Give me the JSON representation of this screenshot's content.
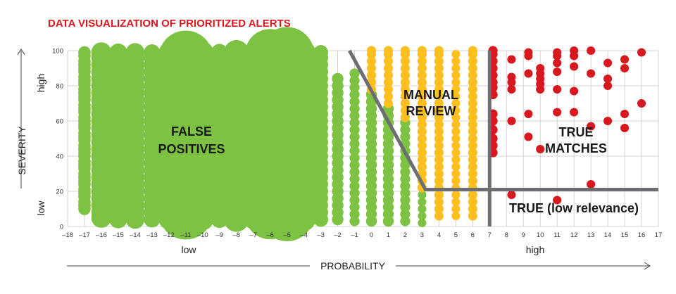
{
  "chart_data": {
    "type": "scatter",
    "title": "DATA VISUALIZATION OF PRIORITIZED ALERTS",
    "xlabel": "PROBABILITY",
    "ylabel": "SEVERITY",
    "x_low_label": "low",
    "x_high_label": "high",
    "y_low_label": "low",
    "y_high_label": "high",
    "xlim": [
      -18,
      17
    ],
    "ylim": [
      0,
      100
    ],
    "x_ticks": [
      -18,
      -17,
      -16,
      -15,
      -14,
      -13,
      -12,
      -11,
      -10,
      -9,
      -8,
      -7,
      -6,
      -5,
      -4,
      -3,
      -2,
      -1,
      0,
      1,
      2,
      3,
      4,
      5,
      6,
      7,
      8,
      9,
      10,
      11,
      12,
      13,
      14,
      15,
      16,
      17
    ],
    "y_ticks": [
      0,
      20,
      40,
      60,
      80,
      100
    ],
    "grid": true,
    "colors": {
      "false_positive": "#7dc242",
      "manual_review": "#ffbf1f",
      "true_match": "#d7191f",
      "boundary": "#6d6e71",
      "title": "#d7191f"
    },
    "regions": {
      "false_positives": "FALSE POSITIVES",
      "manual_review": "MANUAL REVIEW",
      "true_matches": "TRUE MATCHES",
      "true_low_relevance": "TRUE (low relevance)"
    },
    "boundary": [
      {
        "points": [
          [
            -1.3,
            100
          ],
          [
            3.2,
            21
          ],
          [
            17,
            21
          ]
        ]
      },
      {
        "points": [
          [
            7,
            0
          ],
          [
            7,
            100
          ]
        ]
      }
    ],
    "series": [
      {
        "name": "FALSE POSITIVES",
        "color": "#7dc242",
        "columns": [
          {
            "x": -17,
            "size": 1.6,
            "values": [
              10,
              12,
              14,
              17,
              19,
              21,
              24,
              26,
              28,
              30,
              33,
              35,
              37,
              40,
              42,
              44,
              46,
              49,
              51,
              53,
              56,
              58,
              60,
              62,
              65,
              67,
              69,
              72,
              74,
              76,
              78,
              81,
              83,
              85,
              88,
              90,
              92,
              94,
              97,
              99
            ]
          },
          {
            "x": -16,
            "size": 2.6,
            "values": [
              5,
              8,
              12,
              16,
              20,
              24,
              28,
              32,
              36,
              40,
              44,
              48,
              52,
              56,
              60,
              64,
              68,
              72,
              76,
              80,
              84,
              88,
              92,
              96,
              99
            ]
          },
          {
            "x": -15,
            "size": 2.3,
            "values": [
              4,
              8,
              12,
              16,
              20,
              24,
              28,
              32,
              36,
              40,
              44,
              48,
              52,
              56,
              60,
              64,
              68,
              72,
              76,
              80,
              84,
              88,
              92,
              96,
              99
            ]
          },
          {
            "x": -14,
            "size": 2.4,
            "values": [
              4,
              8,
              12,
              16,
              20,
              24,
              28,
              32,
              36,
              40,
              44,
              48,
              52,
              56,
              60,
              64,
              68,
              72,
              76,
              80,
              84,
              88,
              92,
              96,
              99
            ]
          },
          {
            "x": -13,
            "size": 2.1,
            "values": [
              4,
              8,
              12,
              16,
              20,
              24,
              28,
              32,
              36,
              40,
              44,
              48,
              52,
              56,
              60,
              64,
              68,
              72,
              76,
              80,
              84,
              88,
              92,
              96,
              99
            ]
          },
          {
            "x": -12,
            "size": 2.6,
            "values": [
              4,
              8,
              12,
              16,
              20,
              24,
              28,
              32,
              36,
              40,
              44,
              48,
              52,
              56,
              60,
              64,
              68,
              72,
              76,
              80,
              84,
              88,
              92,
              96,
              99
            ]
          },
          {
            "x": -11,
            "size": 7.0,
            "values": [
              8,
              16,
              24,
              32,
              40,
              48,
              56,
              64,
              72,
              80,
              88,
              96
            ]
          },
          {
            "x": -10,
            "size": 2.8,
            "values": [
              4,
              8,
              12,
              16,
              20,
              24,
              28,
              32,
              36,
              40,
              44,
              48,
              52,
              56,
              60,
              64,
              68,
              72,
              76,
              80,
              84,
              88,
              92,
              96,
              99
            ]
          },
          {
            "x": -9,
            "size": 2.2,
            "values": [
              4,
              8,
              12,
              16,
              20,
              24,
              28,
              32,
              36,
              40,
              44,
              48,
              52,
              56,
              60,
              64,
              68,
              72,
              76,
              80,
              84,
              88,
              92,
              96,
              99
            ]
          },
          {
            "x": -8,
            "size": 3.2,
            "values": [
              4,
              8,
              12,
              16,
              20,
              24,
              28,
              32,
              36,
              40,
              44,
              48,
              52,
              56,
              60,
              64,
              68,
              72,
              76,
              80,
              84,
              88,
              92,
              96,
              99
            ]
          },
          {
            "x": -7,
            "size": 2.5,
            "values": [
              4,
              8,
              12,
              16,
              20,
              24,
              28,
              32,
              36,
              40,
              44,
              48,
              52,
              56,
              60,
              64,
              68,
              72,
              76,
              80,
              84,
              88,
              92,
              96,
              99
            ]
          },
          {
            "x": -6,
            "size": 6.5,
            "values": [
              7,
              14,
              21,
              28,
              35,
              42,
              49,
              56,
              63,
              70,
              77,
              84,
              91,
              98
            ]
          },
          {
            "x": -5,
            "size": 7.0,
            "values": [
              7,
              14,
              21,
              28,
              35,
              42,
              49,
              56,
              63,
              70,
              77,
              84,
              91,
              98
            ]
          },
          {
            "x": -4,
            "size": 3.0,
            "values": [
              4,
              8,
              12,
              16,
              20,
              24,
              28,
              32,
              36,
              40,
              44,
              48,
              52,
              56,
              60,
              64,
              68,
              72,
              76,
              80,
              84,
              88,
              92,
              96,
              99
            ]
          },
          {
            "x": -3,
            "size": 1.9,
            "values": [
              4,
              8,
              12,
              16,
              20,
              24,
              28,
              32,
              36,
              40,
              44,
              48,
              52,
              56,
              60,
              64,
              68,
              72,
              76,
              80,
              84,
              88,
              92,
              96,
              99
            ]
          },
          {
            "x": -2,
            "size": 1.5,
            "values": [
              4,
              8,
              12,
              16,
              20,
              24,
              28,
              32,
              36,
              40,
              44,
              48,
              52,
              56,
              60,
              64,
              68,
              72,
              76,
              80,
              84
            ]
          },
          {
            "x": -1,
            "size": 1.3,
            "values": [
              3,
              7,
              11,
              15,
              19,
              23,
              27,
              31,
              35,
              39,
              43,
              47,
              51,
              55,
              59,
              63,
              67,
              71,
              75,
              79,
              83,
              87
            ]
          },
          {
            "x": 0,
            "size": 1.4,
            "values": [
              3,
              7,
              11,
              15,
              19,
              23,
              27,
              31,
              35,
              39,
              43,
              47,
              51,
              55,
              59,
              63,
              67,
              71,
              75
            ]
          },
          {
            "x": 1,
            "size": 1.4,
            "values": [
              3,
              7,
              11,
              15,
              19,
              23,
              27,
              31,
              35,
              39,
              43,
              47,
              51,
              55,
              59,
              63,
              67
            ]
          },
          {
            "x": 2,
            "size": 1.3,
            "values": [
              3,
              7,
              11,
              15,
              19,
              23,
              27,
              31,
              35,
              39,
              43,
              47,
              51,
              55,
              59
            ]
          },
          {
            "x": 3,
            "size": 1.1,
            "values": [
              2,
              6,
              10,
              14,
              18
            ]
          }
        ]
      },
      {
        "name": "MANUAL REVIEW",
        "color": "#ffbf1f",
        "columns": [
          {
            "x": 0,
            "size": 1.2,
            "values": [
              78,
              82,
              86,
              90,
              94,
              98,
              100
            ]
          },
          {
            "x": 1,
            "size": 1.2,
            "values": [
              70,
              74,
              78,
              82,
              86,
              90,
              94,
              98,
              100
            ]
          },
          {
            "x": 2,
            "size": 1.2,
            "values": [
              62,
              66,
              70,
              74,
              78,
              82,
              86,
              90,
              94,
              98,
              100
            ]
          },
          {
            "x": 3,
            "size": 1.2,
            "values": [
              22,
              26,
              30,
              34,
              38,
              42,
              46,
              50,
              54,
              58,
              62,
              66,
              70,
              74,
              78,
              82,
              86,
              90,
              94,
              98,
              100
            ]
          },
          {
            "x": 4,
            "size": 1.2,
            "values": [
              6,
              10,
              14,
              18,
              22,
              26,
              30,
              34,
              38,
              42,
              46,
              50,
              54,
              58,
              62,
              66,
              70,
              74,
              78,
              82,
              86,
              90,
              94,
              98,
              100
            ]
          },
          {
            "x": 5,
            "size": 1.1,
            "values": [
              6,
              10,
              14,
              18,
              22,
              26,
              30,
              34,
              38,
              42,
              46,
              50,
              54,
              58,
              62,
              66,
              70,
              74,
              78,
              82,
              86,
              90,
              94,
              98
            ]
          },
          {
            "x": 6,
            "size": 1.2,
            "values": [
              6,
              10,
              14,
              18,
              22,
              26,
              30,
              34,
              38,
              42,
              46,
              50,
              54,
              58,
              62,
              66,
              70,
              74,
              78,
              82,
              86,
              90,
              94,
              98,
              100
            ]
          }
        ]
      },
      {
        "name": "TRUE MATCHES",
        "color": "#d7191f",
        "columns": [
          {
            "x": 7.2,
            "size": 1.2,
            "values": [
              42,
              46,
              50,
              55,
              60,
              64,
              75,
              79,
              82,
              86,
              90,
              94,
              98,
              100
            ]
          },
          {
            "x": 8.3,
            "size": 1.1,
            "values": [
              18,
              60,
              78,
              82,
              85,
              95
            ]
          },
          {
            "x": 9.3,
            "size": 1.1,
            "values": [
              51,
              64,
              87,
              97,
              99
            ]
          },
          {
            "x": 10,
            "size": 1.1,
            "values": [
              44,
              78,
              81,
              84,
              87,
              90
            ]
          },
          {
            "x": 11,
            "size": 1.1,
            "values": [
              15,
              65,
              78,
              88,
              93,
              97,
              99
            ]
          },
          {
            "x": 12,
            "size": 1.1,
            "values": [
              65,
              77,
              91,
              97,
              100
            ]
          },
          {
            "x": 13,
            "size": 1.1,
            "values": [
              24,
              57,
              87,
              100
            ]
          },
          {
            "x": 14,
            "size": 1.1,
            "values": [
              60,
              80,
              84,
              93
            ]
          },
          {
            "x": 15,
            "size": 1.1,
            "values": [
              56,
              64,
              90,
              95
            ]
          },
          {
            "x": 16,
            "size": 1.1,
            "values": [
              70,
              99
            ]
          }
        ]
      }
    ]
  }
}
